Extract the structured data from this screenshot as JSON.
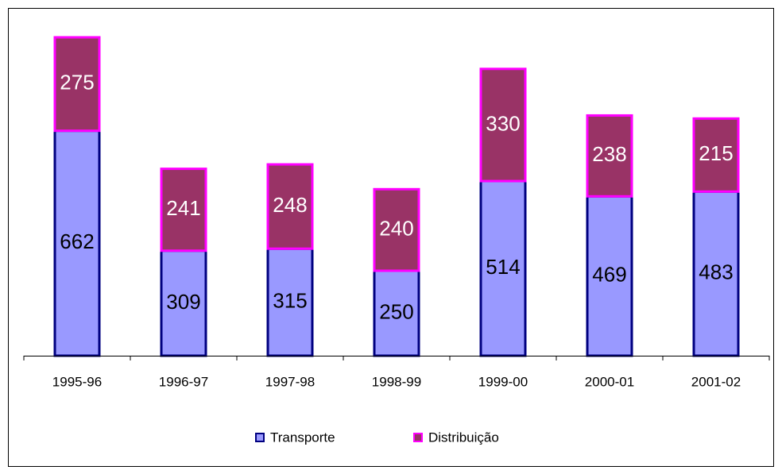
{
  "chart_data": {
    "type": "stacked_bar",
    "categories": [
      "1995-96",
      "1996-97",
      "1997-98",
      "1998-99",
      "1999-00",
      "2000-01",
      "2001-02"
    ],
    "series": [
      {
        "name": "Transporte",
        "color": "#9999ff",
        "edge": "#000080",
        "label_color": "#000000",
        "values": [
          662,
          309,
          315,
          250,
          514,
          469,
          483
        ]
      },
      {
        "name": "Distribuição",
        "color": "#993366",
        "edge": "#ff00ff",
        "label_color": "#ffffff",
        "values": [
          275,
          241,
          248,
          240,
          330,
          238,
          215
        ]
      }
    ],
    "legend": "bottom"
  }
}
